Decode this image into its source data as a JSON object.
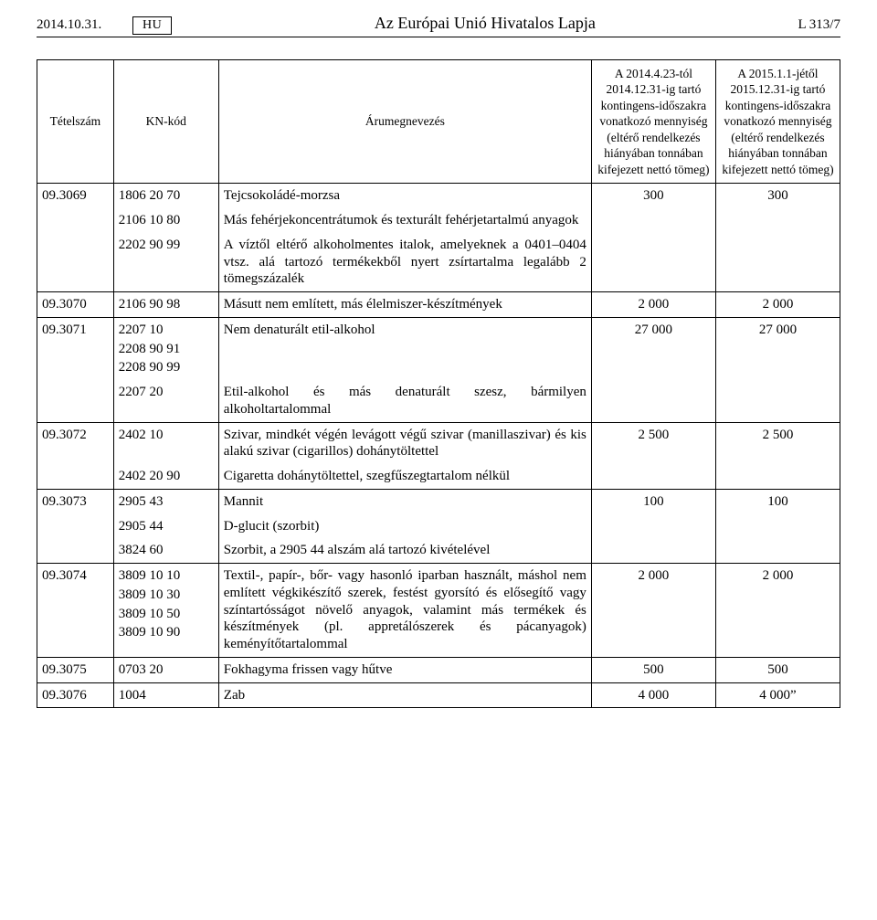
{
  "header": {
    "date": "2014.10.31.",
    "lang": "HU",
    "journal_title": "Az Európai Unió Hivatalos Lapja",
    "page_ref": "L 313/7"
  },
  "table": {
    "columns": {
      "c1": "Tételszám",
      "c2": "KN-kód",
      "c3": "Árumegnevezés",
      "c4": "A 2014.4.23-tól 2014.12.31-ig tartó kontingens-időszakra vonatkozó mennyiség (eltérő rendelkezés hiányában tonnában kifejezett nettó tömeg)",
      "c5": "A 2015.1.1-jétől 2015.12.31-ig tartó kontingens-időszakra vonatkozó mennyiség (eltérő rendelkezés hiányában tonnában kifejezett nettó tömeg)"
    }
  },
  "rows": {
    "r3069": {
      "itemno": "09.3069",
      "kn": {
        "a": "1806 20 70",
        "b": "2106 10 80",
        "c": "2202 90 99"
      },
      "desc": {
        "a": "Tejcsokoládé-morzsa",
        "b": "Más fehérjekoncentrátumok és texturált fehérjetartalmú anyagok",
        "c": "A víztől eltérő alkoholmentes italok, amelyeknek a 0401–0404 vtsz. alá tartozó termékekből nyert zsírtartalma legalább 2 tömegszázalék"
      },
      "q1": "300",
      "q2": "300"
    },
    "r3070": {
      "itemno": "09.3070",
      "kn": "2106 90 98",
      "desc": "Másutt nem említett, más élelmiszer-készítmények",
      "q1": "2 000",
      "q2": "2 000"
    },
    "r3071": {
      "itemno": "09.3071",
      "kn": {
        "a": "2207 10",
        "b": "2208 90 91",
        "c": "2208 90 99",
        "d": "2207 20"
      },
      "desc": {
        "a": "Nem denaturált etil-alkohol",
        "b": "Etil-alkohol és más denaturált szesz, bármilyen alkoholtartalommal"
      },
      "q1": "27 000",
      "q2": "27 000"
    },
    "r3072": {
      "itemno": "09.3072",
      "kn": {
        "a": "2402 10",
        "b": "2402 20 90"
      },
      "desc": {
        "a": "Szivar, mindkét végén levágott végű szivar (manillaszivar) és kis alakú szivar (cigarillos) dohánytöltettel",
        "b": "Cigaretta dohánytöltettel, szegfűszegtartalom nélkül"
      },
      "q1": "2 500",
      "q2": "2 500"
    },
    "r3073": {
      "itemno": "09.3073",
      "kn": {
        "a": "2905 43",
        "b": "2905 44",
        "c": "3824 60"
      },
      "desc": {
        "a": "Mannit",
        "b": "D-glucit (szorbit)",
        "c": "Szorbit, a 2905 44 alszám alá tartozó kivételével"
      },
      "q1": "100",
      "q2": "100"
    },
    "r3074": {
      "itemno": "09.3074",
      "kn": {
        "a": "3809 10 10",
        "b": "3809 10 30",
        "c": "3809 10 50",
        "d": "3809 10 90"
      },
      "desc": "Textil-, papír-, bőr- vagy hasonló iparban használt, máshol nem említett végkikészítő szerek, festést gyorsító és elősegítő vagy színtartósságot növelő anyagok, valamint más termékek és készítmények (pl. appretálószerek és pácanyagok) keményítőtartalommal",
      "q1": "2 000",
      "q2": "2 000"
    },
    "r3075": {
      "itemno": "09.3075",
      "kn": "0703 20",
      "desc": "Fokhagyma frissen vagy hűtve",
      "q1": "500",
      "q2": "500"
    },
    "r3076": {
      "itemno": "09.3076",
      "kn": "1004",
      "desc": "Zab",
      "q1": "4 000",
      "q2": "4 000”"
    }
  }
}
